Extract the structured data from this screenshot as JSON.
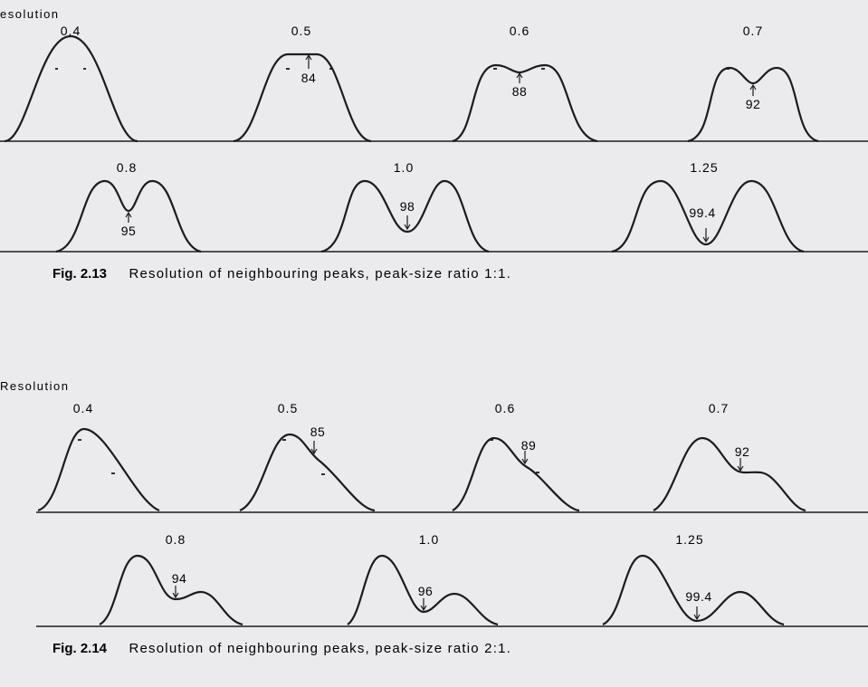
{
  "figures": [
    {
      "id": "fig-2-13",
      "resolution_heading": "esolution",
      "caption_number": "Fig. 2.13",
      "caption_text": "Resolution of neighbouring peaks, peak-size ratio 1:1.",
      "peak_size_ratio": [
        1,
        1
      ],
      "panels": [
        {
          "resolution": "0.4",
          "valley_percent": ""
        },
        {
          "resolution": "0.5",
          "valley_percent": "84"
        },
        {
          "resolution": "0.6",
          "valley_percent": "88"
        },
        {
          "resolution": "0.7",
          "valley_percent": "92"
        },
        {
          "resolution": "0.8",
          "valley_percent": "95"
        },
        {
          "resolution": "1.0",
          "valley_percent": "98"
        },
        {
          "resolution": "1.25",
          "valley_percent": "99.4"
        }
      ]
    },
    {
      "id": "fig-2-14",
      "resolution_heading": "Resolution",
      "caption_number": "Fig. 2.14",
      "caption_text": "Resolution of neighbouring peaks, peak-size ratio 2:1.",
      "peak_size_ratio": [
        2,
        1
      ],
      "panels": [
        {
          "resolution": "0.4",
          "valley_percent": ""
        },
        {
          "resolution": "0.5",
          "valley_percent": "85"
        },
        {
          "resolution": "0.6",
          "valley_percent": "89"
        },
        {
          "resolution": "0.7",
          "valley_percent": "92"
        },
        {
          "resolution": "0.8",
          "valley_percent": "94"
        },
        {
          "resolution": "1.0",
          "valley_percent": "96"
        },
        {
          "resolution": "1.25",
          "valley_percent": "99.4"
        }
      ]
    }
  ]
}
